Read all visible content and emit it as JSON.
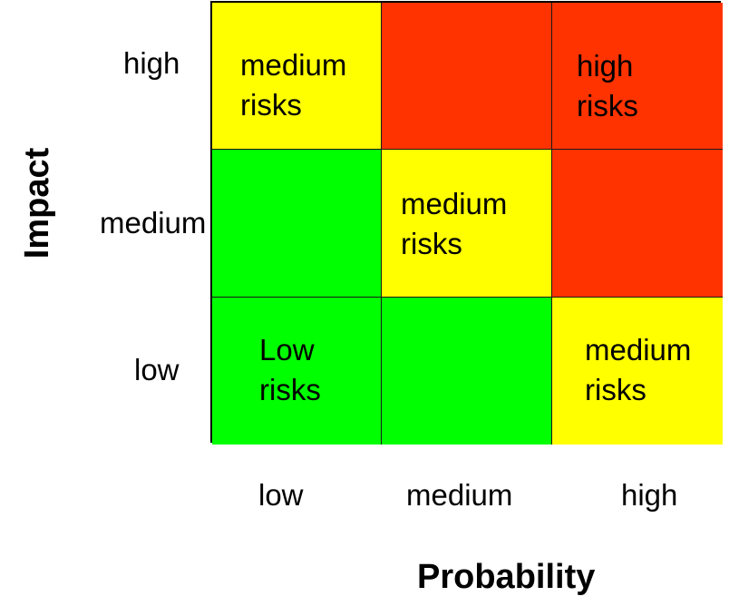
{
  "axes": {
    "x_title": "Probability",
    "y_title": "Impact",
    "x_levels": [
      "low",
      "medium",
      "high"
    ],
    "y_levels": [
      "high",
      "medium",
      "low"
    ]
  },
  "colors": {
    "low": "#00ff00",
    "medium": "#ffff00",
    "high": "#ff3300"
  },
  "cells": [
    {
      "impact": "high",
      "probability": "low",
      "level": "medium",
      "label": "medium\nrisks"
    },
    {
      "impact": "high",
      "probability": "medium",
      "level": "high",
      "label": ""
    },
    {
      "impact": "high",
      "probability": "high",
      "level": "high",
      "label": "high\nrisks"
    },
    {
      "impact": "medium",
      "probability": "low",
      "level": "low",
      "label": ""
    },
    {
      "impact": "medium",
      "probability": "medium",
      "level": "medium",
      "label": "medium\nrisks"
    },
    {
      "impact": "medium",
      "probability": "high",
      "level": "high",
      "label": ""
    },
    {
      "impact": "low",
      "probability": "low",
      "level": "low",
      "label": "Low\nrisks"
    },
    {
      "impact": "low",
      "probability": "medium",
      "level": "low",
      "label": ""
    },
    {
      "impact": "low",
      "probability": "high",
      "level": "medium",
      "label": "medium\nrisks"
    }
  ]
}
